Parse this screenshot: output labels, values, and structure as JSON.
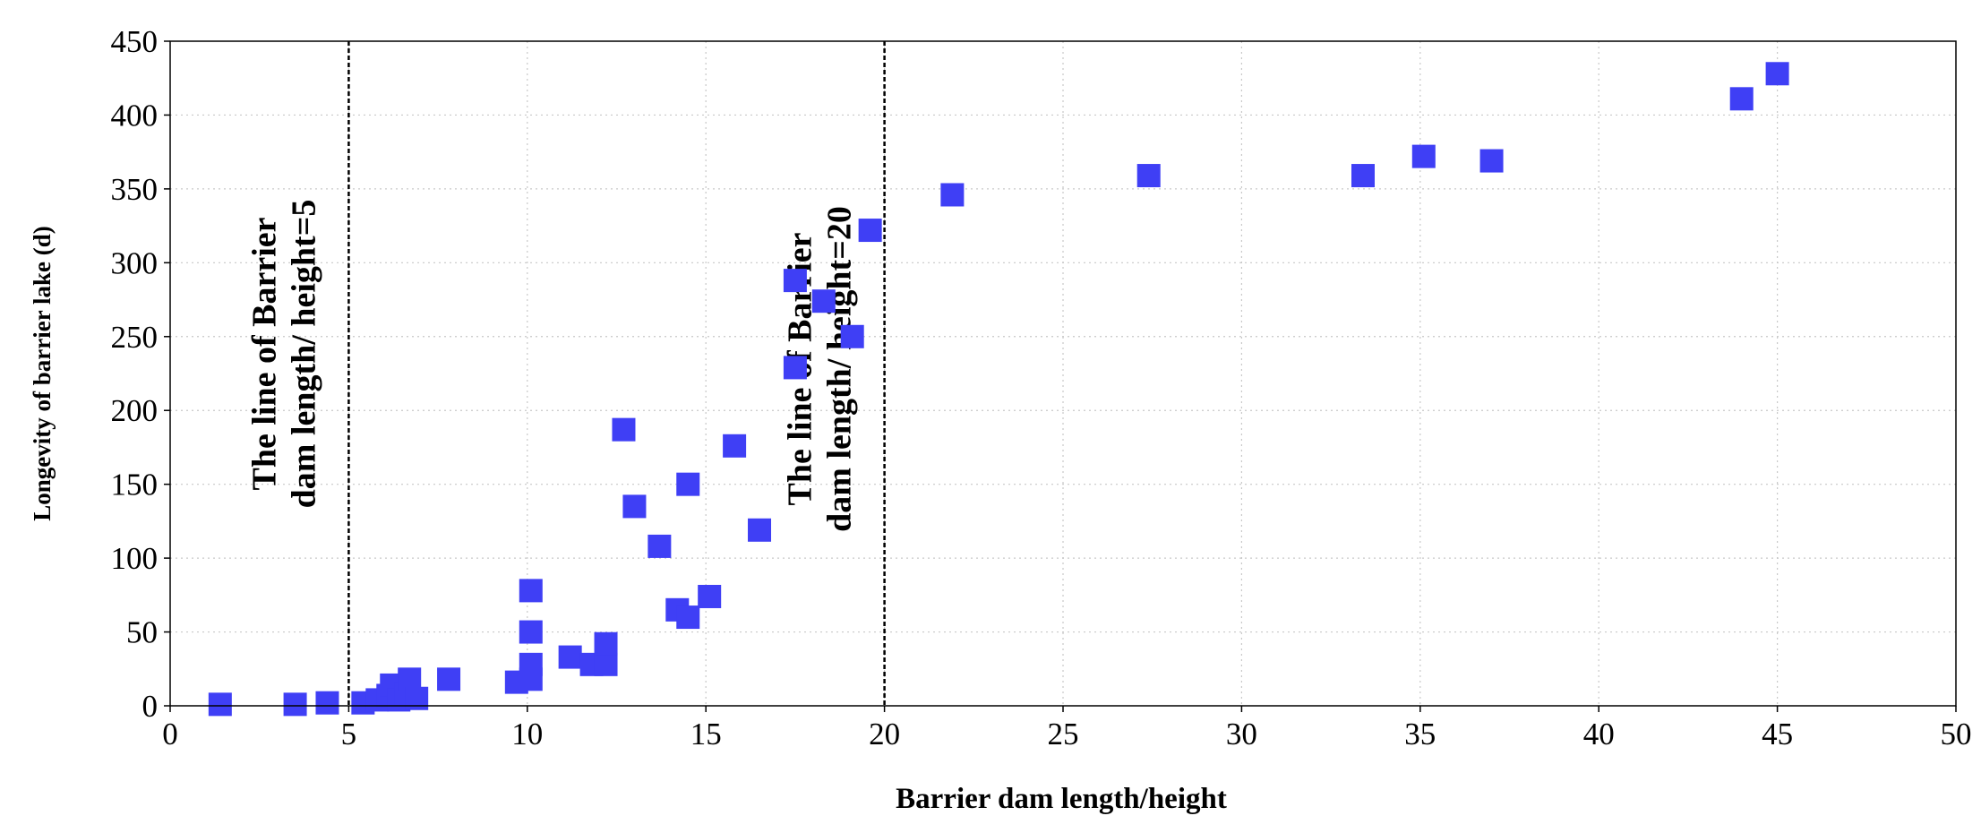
{
  "chart_data": {
    "type": "scatter",
    "xlabel": "Barrier dam length/height",
    "ylabel": "Longevity of barrier lake  (d)",
    "xlim": [
      0,
      50
    ],
    "ylim": [
      0,
      450
    ],
    "x_ticks": [
      "0",
      "5",
      "10",
      "15",
      "20",
      "25",
      "30",
      "35",
      "40",
      "45",
      "50"
    ],
    "y_ticks": [
      "0",
      "50",
      "100",
      "150",
      "200",
      "250",
      "300",
      "350",
      "400",
      "450"
    ],
    "grid": "dotted",
    "marker": "square",
    "color": "#3f3ff5",
    "reference_lines": [
      {
        "x": 5,
        "label": [
          "The line of Barrier",
          "dam length/ height=5"
        ]
      },
      {
        "x": 20,
        "label": [
          "The line of Barrier",
          "dam length/ height=20"
        ]
      }
    ],
    "points": [
      [
        1.4,
        1
      ],
      [
        3.5,
        1
      ],
      [
        4.4,
        2
      ],
      [
        5.4,
        2
      ],
      [
        5.8,
        4
      ],
      [
        6.1,
        7
      ],
      [
        6.2,
        14
      ],
      [
        6.4,
        4
      ],
      [
        6.6,
        8
      ],
      [
        6.7,
        18
      ],
      [
        6.9,
        5
      ],
      [
        7.8,
        18
      ],
      [
        9.7,
        16
      ],
      [
        10.1,
        18
      ],
      [
        10.1,
        28
      ],
      [
        10.1,
        50
      ],
      [
        10.1,
        78
      ],
      [
        11.2,
        33
      ],
      [
        11.8,
        28
      ],
      [
        12.2,
        28
      ],
      [
        12.2,
        42
      ],
      [
        12.7,
        187
      ],
      [
        13.0,
        135
      ],
      [
        13.7,
        108
      ],
      [
        14.2,
        65
      ],
      [
        14.5,
        60
      ],
      [
        14.5,
        150
      ],
      [
        15.1,
        74
      ],
      [
        15.8,
        176
      ],
      [
        16.5,
        119
      ],
      [
        17.5,
        229
      ],
      [
        17.5,
        288
      ],
      [
        18.3,
        274
      ],
      [
        19.1,
        250
      ],
      [
        19.6,
        322
      ],
      [
        21.9,
        346
      ],
      [
        27.4,
        359
      ],
      [
        33.4,
        359
      ],
      [
        35.1,
        372
      ],
      [
        37.0,
        369
      ],
      [
        44.0,
        411
      ],
      [
        45.0,
        428
      ]
    ]
  }
}
